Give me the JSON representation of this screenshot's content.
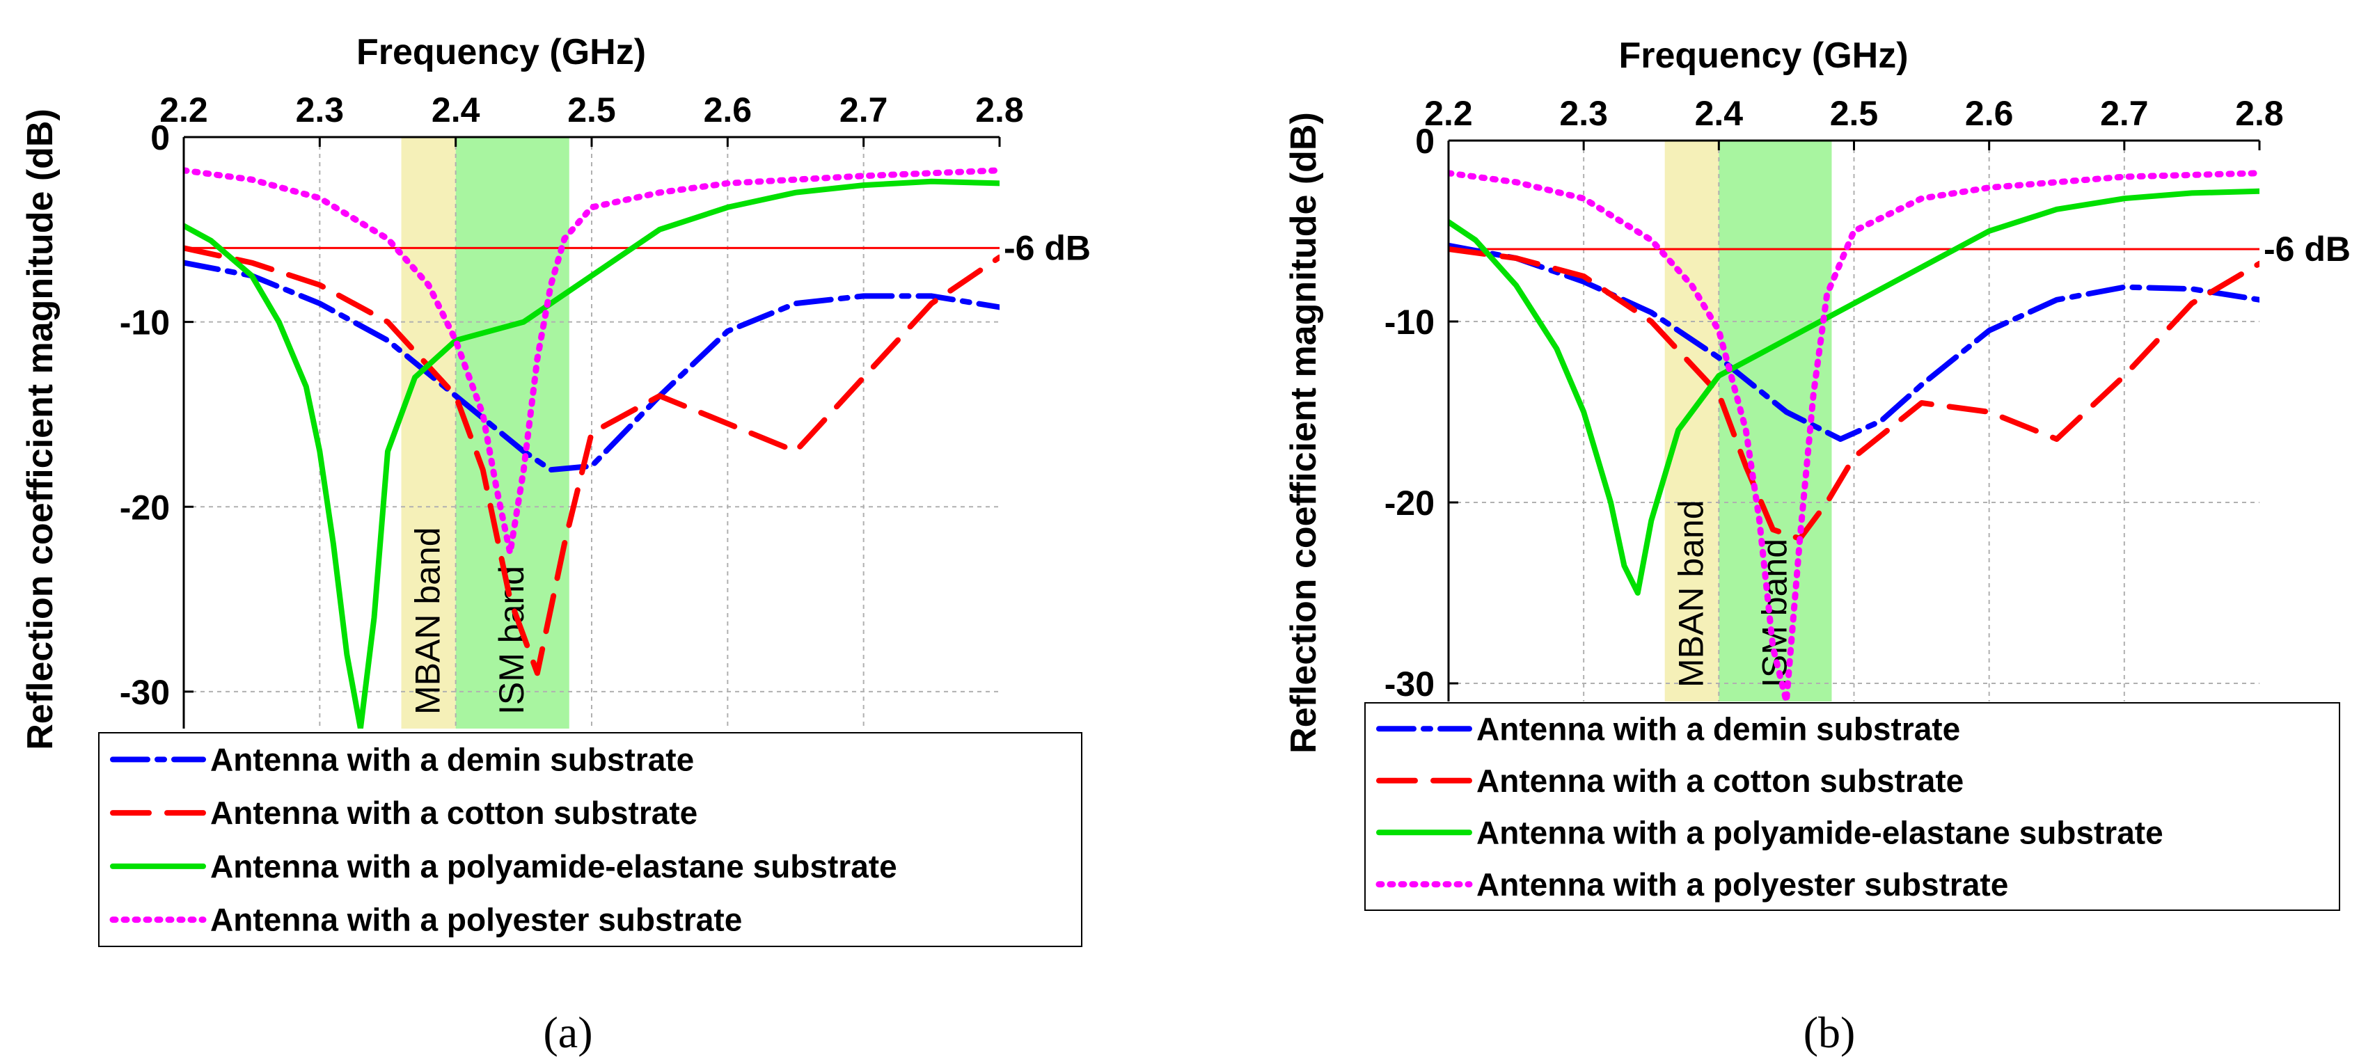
{
  "chart_data": [
    {
      "type": "line",
      "panel_label": "(a)",
      "xlabel": "Frequency (GHz)",
      "ylabel": "Reflection coefficient magnitude (dB)",
      "xlim": [
        2.2,
        2.8
      ],
      "ylim": [
        -32,
        0
      ],
      "xticks": [
        "2.2",
        "2.3",
        "2.4",
        "2.5",
        "2.6",
        "2.7",
        "2.8"
      ],
      "yticks": [
        "0",
        "-10",
        "-20",
        "-30"
      ],
      "grid": true,
      "reference_line": {
        "value": -6,
        "label": "-6 dB",
        "color": "#ff0000"
      },
      "bands": [
        {
          "name": "MBAN band",
          "x_start": 2.36,
          "x_end": 2.4,
          "color": "#f5f0b8"
        },
        {
          "name": "ISM band",
          "x_start": 2.4,
          "x_end": 2.4835,
          "color": "#a8f5a0"
        }
      ],
      "series": [
        {
          "name": "Antenna with a demin substrate",
          "color": "#0000ff",
          "style": "dashdot",
          "x": [
            2.2,
            2.25,
            2.3,
            2.35,
            2.4,
            2.45,
            2.47,
            2.5,
            2.55,
            2.6,
            2.65,
            2.7,
            2.75,
            2.8
          ],
          "y": [
            -6.8,
            -7.5,
            -9,
            -11,
            -14,
            -17,
            -18,
            -17.8,
            -14,
            -10.5,
            -9,
            -8.6,
            -8.6,
            -9.2
          ]
        },
        {
          "name": "Antenna with a cotton substrate",
          "color": "#ff0000",
          "style": "dashed",
          "x": [
            2.2,
            2.25,
            2.3,
            2.35,
            2.4,
            2.42,
            2.44,
            2.46,
            2.48,
            2.5,
            2.55,
            2.6,
            2.65,
            2.7,
            2.75,
            2.8
          ],
          "y": [
            -6,
            -6.8,
            -8,
            -10,
            -14,
            -18,
            -25,
            -29,
            -22,
            -16,
            -14,
            -15.5,
            -17,
            -13,
            -9,
            -6.5
          ]
        },
        {
          "name": "Antenna with a polyamide-elastane substrate",
          "color": "#00e000",
          "style": "solid",
          "x": [
            2.2,
            2.22,
            2.25,
            2.27,
            2.29,
            2.3,
            2.31,
            2.32,
            2.33,
            2.34,
            2.35,
            2.37,
            2.4,
            2.45,
            2.5,
            2.55,
            2.6,
            2.65,
            2.7,
            2.75,
            2.8
          ],
          "y": [
            -4.8,
            -5.6,
            -7.5,
            -10,
            -13.5,
            -17,
            -22,
            -28,
            -32,
            -26,
            -17,
            -13,
            -11,
            -10,
            -7.5,
            -5,
            -3.8,
            -3,
            -2.6,
            -2.4,
            -2.5
          ]
        },
        {
          "name": "Antenna with a polyester substrate",
          "color": "#ff00ff",
          "style": "dotted",
          "x": [
            2.2,
            2.25,
            2.3,
            2.35,
            2.38,
            2.4,
            2.42,
            2.43,
            2.44,
            2.45,
            2.46,
            2.47,
            2.48,
            2.5,
            2.55,
            2.6,
            2.7,
            2.8
          ],
          "y": [
            -1.8,
            -2.3,
            -3.3,
            -5.5,
            -8,
            -11,
            -15,
            -19,
            -22.5,
            -18,
            -12,
            -8,
            -5.5,
            -3.8,
            -3,
            -2.5,
            -2.1,
            -1.8
          ]
        }
      ]
    },
    {
      "type": "line",
      "panel_label": "(b)",
      "xlabel": "Frequency (GHz)",
      "ylabel": "Reflection coefficient magnitude (dB)",
      "xlim": [
        2.2,
        2.8
      ],
      "ylim": [
        -31,
        0
      ],
      "xticks": [
        "2.2",
        "2.3",
        "2.4",
        "2.5",
        "2.6",
        "2.7",
        "2.8"
      ],
      "yticks": [
        "0",
        "-10",
        "-20",
        "-30"
      ],
      "grid": true,
      "reference_line": {
        "value": -6,
        "label": "-6 dB",
        "color": "#ff0000"
      },
      "bands": [
        {
          "name": "MBAN band",
          "x_start": 2.36,
          "x_end": 2.4,
          "color": "#f5f0b8"
        },
        {
          "name": "ISM band",
          "x_start": 2.4,
          "x_end": 2.4835,
          "color": "#a8f5a0"
        }
      ],
      "series": [
        {
          "name": "Antenna with a demin substrate",
          "color": "#0000ff",
          "style": "dashdot",
          "x": [
            2.2,
            2.25,
            2.3,
            2.35,
            2.4,
            2.45,
            2.49,
            2.52,
            2.55,
            2.6,
            2.65,
            2.7,
            2.75,
            2.8
          ],
          "y": [
            -5.8,
            -6.5,
            -7.8,
            -9.5,
            -12,
            -15,
            -16.5,
            -15.5,
            -13.5,
            -10.5,
            -8.8,
            -8.1,
            -8.2,
            -8.8
          ]
        },
        {
          "name": "Antenna with a cotton substrate",
          "color": "#ff0000",
          "style": "dashed",
          "x": [
            2.2,
            2.25,
            2.3,
            2.35,
            2.4,
            2.42,
            2.44,
            2.46,
            2.48,
            2.5,
            2.55,
            2.6,
            2.65,
            2.7,
            2.75,
            2.8
          ],
          "y": [
            -6,
            -6.5,
            -7.5,
            -10,
            -14,
            -18,
            -21.5,
            -22,
            -20,
            -17.5,
            -14.5,
            -15,
            -16.5,
            -13,
            -9,
            -6.8
          ]
        },
        {
          "name": "Antenna with a polyamide-elastane substrate",
          "color": "#00e000",
          "style": "solid",
          "x": [
            2.2,
            2.22,
            2.25,
            2.28,
            2.3,
            2.32,
            2.33,
            2.34,
            2.35,
            2.37,
            2.4,
            2.45,
            2.5,
            2.55,
            2.6,
            2.65,
            2.7,
            2.75,
            2.8
          ],
          "y": [
            -4.5,
            -5.5,
            -8,
            -11.5,
            -15,
            -20,
            -23.5,
            -25,
            -21,
            -16,
            -13,
            -11,
            -9,
            -7,
            -5,
            -3.8,
            -3.2,
            -2.9,
            -2.8
          ]
        },
        {
          "name": "Antenna with a polyester substrate",
          "color": "#ff00ff",
          "style": "dotted",
          "x": [
            2.2,
            2.25,
            2.3,
            2.35,
            2.38,
            2.4,
            2.42,
            2.43,
            2.44,
            2.45,
            2.46,
            2.47,
            2.48,
            2.5,
            2.55,
            2.6,
            2.7,
            2.8
          ],
          "y": [
            -1.8,
            -2.3,
            -3.2,
            -5.5,
            -8,
            -10.5,
            -16,
            -21,
            -28,
            -31,
            -22,
            -14,
            -8.5,
            -5,
            -3.2,
            -2.6,
            -2,
            -1.8
          ]
        }
      ]
    }
  ]
}
